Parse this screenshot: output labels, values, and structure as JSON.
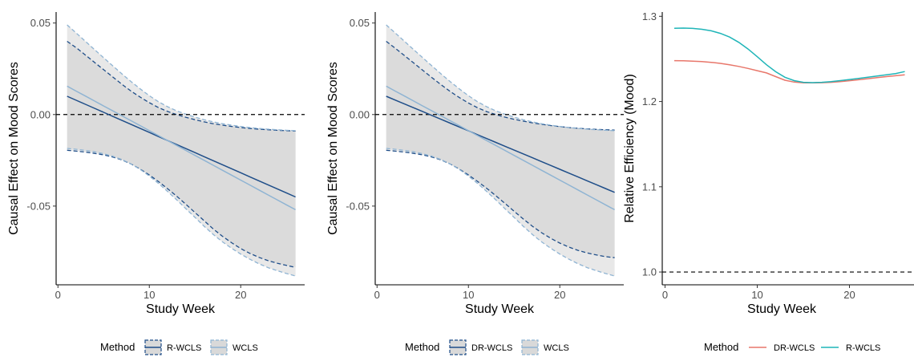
{
  "chart_data": [
    {
      "type": "line",
      "xlabel": "Study Week",
      "ylabel": "Causal Effect on Mood Scores",
      "xlim": [
        -0.2,
        27
      ],
      "ylim": [
        -0.093,
        0.056
      ],
      "xticks": [
        0,
        10,
        20
      ],
      "xtick_labels": [
        "0",
        "10",
        "20"
      ],
      "yticks": [
        0.05,
        0.0,
        -0.05
      ],
      "ytick_labels": [
        "0.05",
        "0.00",
        "-0.05"
      ],
      "reference_line": 0,
      "x": [
        1,
        2,
        3,
        4,
        5,
        6,
        7,
        8,
        9,
        10,
        11,
        12,
        13,
        14,
        15,
        16,
        17,
        18,
        19,
        20,
        21,
        22,
        23,
        24,
        25,
        26
      ],
      "series": [
        {
          "name": "R-WCLS",
          "color": "#1f4e89",
          "estimate": [
            0.01,
            0.0078,
            0.0056,
            0.0034,
            0.0012,
            -0.001,
            -0.0032,
            -0.0054,
            -0.0076,
            -0.0098,
            -0.012,
            -0.0142,
            -0.0164,
            -0.0186,
            -0.0208,
            -0.023,
            -0.0252,
            -0.0274,
            -0.0296,
            -0.0318,
            -0.034,
            -0.0362,
            -0.0384,
            -0.0406,
            -0.0428,
            -0.045
          ],
          "lower": [
            -0.0195,
            -0.02,
            -0.0205,
            -0.0212,
            -0.022,
            -0.0232,
            -0.0248,
            -0.027,
            -0.0298,
            -0.033,
            -0.0366,
            -0.0405,
            -0.0446,
            -0.049,
            -0.0535,
            -0.058,
            -0.0625,
            -0.0665,
            -0.07,
            -0.0732,
            -0.0758,
            -0.078,
            -0.0798,
            -0.0812,
            -0.0824,
            -0.0835
          ],
          "upper": [
            0.04,
            0.0365,
            0.0325,
            0.0285,
            0.0245,
            0.0205,
            0.0165,
            0.0128,
            0.0095,
            0.0065,
            0.0038,
            0.0017,
            0.0,
            -0.0015,
            -0.0028,
            -0.004,
            -0.005,
            -0.0058,
            -0.0065,
            -0.0071,
            -0.0076,
            -0.008,
            -0.0083,
            -0.0086,
            -0.0088,
            -0.009
          ]
        },
        {
          "name": "WCLS",
          "color": "#8fb4d3",
          "estimate": [
            0.0155,
            0.0128,
            0.0101,
            0.0074,
            0.0047,
            0.002,
            -0.0007,
            -0.0034,
            -0.0061,
            -0.0088,
            -0.0115,
            -0.0142,
            -0.0169,
            -0.0196,
            -0.0223,
            -0.025,
            -0.0277,
            -0.0304,
            -0.0331,
            -0.0358,
            -0.0385,
            -0.0412,
            -0.0439,
            -0.0466,
            -0.0493,
            -0.052
          ],
          "lower": [
            -0.0185,
            -0.019,
            -0.0196,
            -0.0204,
            -0.0214,
            -0.0228,
            -0.0246,
            -0.027,
            -0.03,
            -0.0336,
            -0.0376,
            -0.042,
            -0.0466,
            -0.0514,
            -0.0562,
            -0.061,
            -0.0655,
            -0.0695,
            -0.073,
            -0.0762,
            -0.079,
            -0.0815,
            -0.0836,
            -0.0853,
            -0.0868,
            -0.0882
          ],
          "upper": [
            0.049,
            0.0445,
            0.04,
            0.0355,
            0.031,
            0.0266,
            0.0222,
            0.018,
            0.014,
            0.0103,
            0.007,
            0.0043,
            0.002,
            0.0002,
            -0.0014,
            -0.0028,
            -0.004,
            -0.005,
            -0.0058,
            -0.0065,
            -0.0071,
            -0.0076,
            -0.008,
            -0.0083,
            -0.0086,
            -0.0088
          ]
        }
      ],
      "legend": {
        "title": "Method",
        "placement": "bottom",
        "entries": [
          "R-WCLS",
          "WCLS"
        ]
      }
    },
    {
      "type": "line",
      "xlabel": "Study Week",
      "ylabel": "Causal Effect on Mood Scores",
      "xlim": [
        -0.2,
        27
      ],
      "ylim": [
        -0.093,
        0.056
      ],
      "xticks": [
        0,
        10,
        20
      ],
      "xtick_labels": [
        "0",
        "10",
        "20"
      ],
      "yticks": [
        0.05,
        0.0,
        -0.05
      ],
      "ytick_labels": [
        "0.05",
        "0.00",
        "-0.05"
      ],
      "reference_line": 0,
      "x": [
        1,
        2,
        3,
        4,
        5,
        6,
        7,
        8,
        9,
        10,
        11,
        12,
        13,
        14,
        15,
        16,
        17,
        18,
        19,
        20,
        21,
        22,
        23,
        24,
        25,
        26
      ],
      "series": [
        {
          "name": "DR-WCLS",
          "color": "#1f4e89",
          "estimate": [
            0.01,
            0.0079,
            0.0058,
            0.0037,
            0.0016,
            -0.0005,
            -0.0026,
            -0.0047,
            -0.0068,
            -0.0089,
            -0.011,
            -0.0131,
            -0.0152,
            -0.0173,
            -0.0194,
            -0.0215,
            -0.0236,
            -0.0257,
            -0.0278,
            -0.0299,
            -0.032,
            -0.0341,
            -0.0362,
            -0.0383,
            -0.0404,
            -0.0425
          ],
          "lower": [
            -0.0195,
            -0.02,
            -0.0205,
            -0.0212,
            -0.022,
            -0.0232,
            -0.0248,
            -0.027,
            -0.0298,
            -0.033,
            -0.0365,
            -0.0403,
            -0.0443,
            -0.0485,
            -0.0528,
            -0.057,
            -0.061,
            -0.0645,
            -0.0676,
            -0.0702,
            -0.0724,
            -0.0742,
            -0.0756,
            -0.0767,
            -0.0776,
            -0.0782
          ],
          "upper": [
            0.04,
            0.0362,
            0.0322,
            0.0282,
            0.0242,
            0.0202,
            0.0163,
            0.0126,
            0.0093,
            0.0063,
            0.0037,
            0.0016,
            0.0,
            -0.0014,
            -0.0026,
            -0.0036,
            -0.0045,
            -0.0053,
            -0.006,
            -0.0066,
            -0.0071,
            -0.0075,
            -0.0078,
            -0.0081,
            -0.0083,
            -0.0085
          ]
        },
        {
          "name": "WCLS",
          "color": "#8fb4d3",
          "estimate": [
            0.0155,
            0.0128,
            0.0101,
            0.0074,
            0.0047,
            0.002,
            -0.0007,
            -0.0034,
            -0.0061,
            -0.0088,
            -0.0115,
            -0.0142,
            -0.0169,
            -0.0196,
            -0.0223,
            -0.025,
            -0.0277,
            -0.0304,
            -0.0331,
            -0.0358,
            -0.0385,
            -0.0412,
            -0.0439,
            -0.0466,
            -0.0493,
            -0.052
          ],
          "lower": [
            -0.0185,
            -0.019,
            -0.0196,
            -0.0204,
            -0.0214,
            -0.0228,
            -0.0246,
            -0.027,
            -0.03,
            -0.0336,
            -0.0376,
            -0.042,
            -0.0466,
            -0.0514,
            -0.0562,
            -0.061,
            -0.0655,
            -0.0695,
            -0.073,
            -0.0762,
            -0.079,
            -0.0815,
            -0.0836,
            -0.0853,
            -0.0868,
            -0.0882
          ],
          "upper": [
            0.049,
            0.0445,
            0.04,
            0.0355,
            0.031,
            0.0266,
            0.0222,
            0.018,
            0.014,
            0.0103,
            0.007,
            0.0043,
            0.002,
            0.0002,
            -0.0014,
            -0.0028,
            -0.004,
            -0.005,
            -0.0058,
            -0.0065,
            -0.0071,
            -0.0076,
            -0.008,
            -0.0083,
            -0.0086,
            -0.0088
          ]
        }
      ],
      "legend": {
        "title": "Method",
        "placement": "bottom",
        "entries": [
          "DR-WCLS",
          "WCLS"
        ]
      }
    },
    {
      "type": "line",
      "xlabel": "Study Week",
      "ylabel": "Relative Efficiency (Mood)",
      "xlim": [
        -0.3,
        27
      ],
      "ylim": [
        0.985,
        1.305
      ],
      "xticks": [
        0,
        10,
        20
      ],
      "xtick_labels": [
        "0",
        "10",
        "20"
      ],
      "yticks": [
        1.0,
        1.1,
        1.2,
        1.3
      ],
      "ytick_labels": [
        "1.0",
        "1.1",
        "1.2",
        "1.3"
      ],
      "reference_line": 1.0,
      "x": [
        1,
        2,
        3,
        4,
        5,
        6,
        7,
        8,
        9,
        10,
        11,
        12,
        13,
        14,
        15,
        16,
        17,
        18,
        19,
        20,
        21,
        22,
        23,
        24,
        25,
        26
      ],
      "series": [
        {
          "name": "DR-WCLS",
          "color": "#e8776b",
          "values": [
            1.248,
            1.2478,
            1.2474,
            1.2468,
            1.246,
            1.2448,
            1.2432,
            1.2412,
            1.2388,
            1.2362,
            1.2336,
            1.2292,
            1.225,
            1.2228,
            1.222,
            1.2219,
            1.2221,
            1.2226,
            1.2234,
            1.2244,
            1.2256,
            1.2268,
            1.228,
            1.2292,
            1.2303,
            1.2313
          ]
        },
        {
          "name": "R-WCLS",
          "color": "#1fb5b8",
          "values": [
            1.286,
            1.2862,
            1.2858,
            1.2848,
            1.283,
            1.28,
            1.2756,
            1.2694,
            1.2616,
            1.2526,
            1.2432,
            1.235,
            1.2285,
            1.2245,
            1.2226,
            1.2222,
            1.2226,
            1.2234,
            1.2245,
            1.2258,
            1.2272,
            1.2286,
            1.23,
            1.2314,
            1.2328,
            1.2352
          ]
        }
      ],
      "legend": {
        "title": "Method",
        "placement": "bottom",
        "entries": [
          "DR-WCLS",
          "R-WCLS"
        ]
      }
    }
  ]
}
